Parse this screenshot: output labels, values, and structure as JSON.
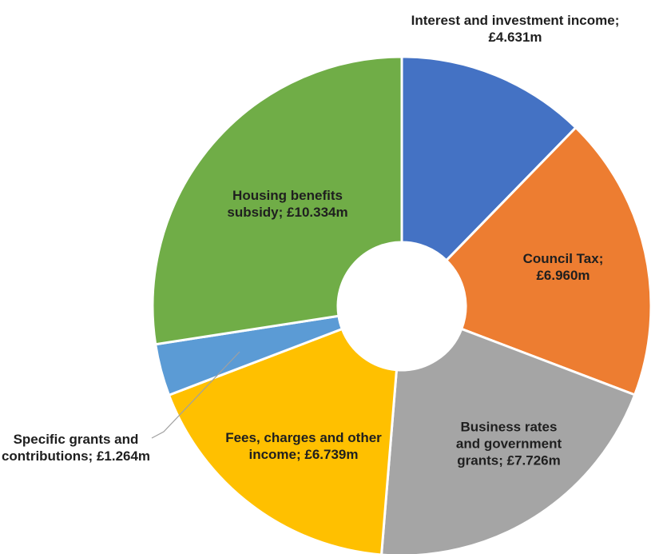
{
  "chart_data": {
    "type": "donut",
    "categories": [
      "Interest and investment income;",
      "Council Tax;",
      "Business rates and government grants;",
      "Fees, charges and other income;",
      "Specific grants and contributions;",
      "Housing benefits subsidy;"
    ],
    "values": [
      4.631,
      6.96,
      7.726,
      6.739,
      1.264,
      10.334
    ],
    "value_labels": [
      "£4.631m",
      "£6.960m",
      "£7.726m",
      "£6.739m",
      "£1.264m",
      "£10.334m"
    ],
    "colors": [
      "#4472c4",
      "#ed7d31",
      "#a5a5a5",
      "#ffc000",
      "#5b9bd5",
      "#70ad47"
    ]
  }
}
